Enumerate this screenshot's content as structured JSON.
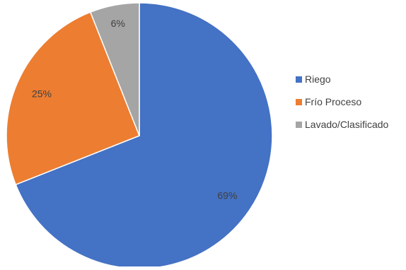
{
  "chart_data": {
    "type": "pie",
    "title": "",
    "slices": [
      {
        "label": "Riego",
        "value": 69,
        "value_label": "69%",
        "color": "#4472c4"
      },
      {
        "label": "Frío Proceso",
        "value": 25,
        "value_label": "25%",
        "color": "#ed7d31"
      },
      {
        "label": "Lavado/Clasificado",
        "value": 6,
        "value_label": "6%",
        "color": "#a5a5a5"
      }
    ],
    "start_angle_deg": 0,
    "direction": "clockwise",
    "legend_position": "right",
    "data_labels": true
  }
}
